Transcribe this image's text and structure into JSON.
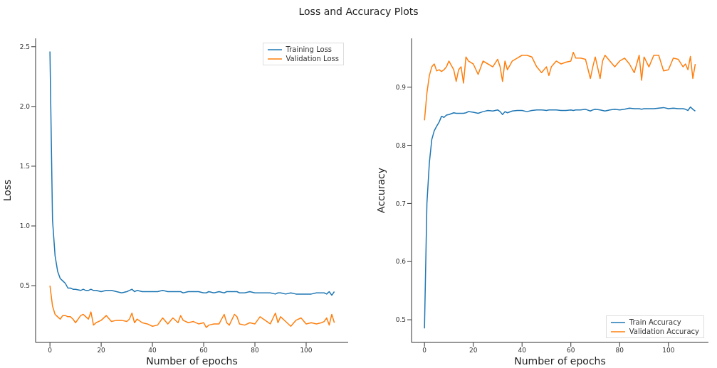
{
  "chart_data": [
    {
      "type": "line",
      "title": "Loss and Accuracy Plots",
      "xlabel": "Number of epochs",
      "ylabel": "Loss",
      "legend": "top right",
      "x": [
        0,
        1,
        2,
        3,
        4,
        5,
        6,
        7,
        8,
        9,
        10,
        12,
        13,
        14,
        15,
        16,
        17,
        18,
        20,
        22,
        24,
        26,
        28,
        30,
        31,
        32,
        33,
        34,
        36,
        38,
        40,
        42,
        44,
        46,
        48,
        50,
        51,
        52,
        54,
        56,
        58,
        60,
        61,
        62,
        64,
        66,
        68,
        69,
        70,
        72,
        73,
        74,
        76,
        78,
        80,
        82,
        84,
        86,
        88,
        89,
        90,
        92,
        94,
        96,
        98,
        100,
        102,
        104,
        106,
        107,
        108,
        109,
        110,
        111
      ],
      "xlim": [
        -5.6,
        116.4
      ],
      "xticks": [
        0,
        20,
        40,
        60,
        80,
        100
      ],
      "ylim": [
        0.025,
        2.57
      ],
      "yticks": [
        0.5,
        {
          "value": 1,
          "label": "1.0"
        },
        1.5,
        {
          "value": 2,
          "label": "2.0"
        },
        2.5
      ],
      "series": [
        {
          "name": "Training Loss",
          "color": "#1f77b4",
          "values": [
            2.46,
            1.05,
            0.75,
            0.62,
            0.56,
            0.54,
            0.52,
            0.48,
            0.48,
            0.47,
            0.47,
            0.46,
            0.47,
            0.46,
            0.46,
            0.47,
            0.46,
            0.46,
            0.45,
            0.46,
            0.46,
            0.45,
            0.44,
            0.45,
            0.46,
            0.47,
            0.45,
            0.46,
            0.45,
            0.45,
            0.45,
            0.45,
            0.46,
            0.45,
            0.45,
            0.45,
            0.45,
            0.44,
            0.45,
            0.45,
            0.45,
            0.44,
            0.44,
            0.45,
            0.44,
            0.45,
            0.44,
            0.45,
            0.45,
            0.45,
            0.45,
            0.44,
            0.44,
            0.45,
            0.44,
            0.44,
            0.44,
            0.44,
            0.43,
            0.44,
            0.44,
            0.43,
            0.44,
            0.43,
            0.43,
            0.43,
            0.43,
            0.44,
            0.44,
            0.44,
            0.43,
            0.45,
            0.42,
            0.45
          ]
        },
        {
          "name": "Validation Loss",
          "color": "#ff7f0e",
          "values": [
            0.5,
            0.33,
            0.26,
            0.24,
            0.22,
            0.25,
            0.25,
            0.24,
            0.24,
            0.22,
            0.19,
            0.25,
            0.26,
            0.24,
            0.22,
            0.28,
            0.17,
            0.19,
            0.21,
            0.25,
            0.2,
            0.21,
            0.21,
            0.2,
            0.22,
            0.27,
            0.19,
            0.22,
            0.19,
            0.18,
            0.16,
            0.17,
            0.23,
            0.18,
            0.23,
            0.19,
            0.25,
            0.21,
            0.19,
            0.2,
            0.18,
            0.19,
            0.15,
            0.17,
            0.18,
            0.18,
            0.26,
            0.19,
            0.17,
            0.26,
            0.24,
            0.18,
            0.17,
            0.19,
            0.18,
            0.24,
            0.21,
            0.18,
            0.27,
            0.19,
            0.24,
            0.2,
            0.16,
            0.21,
            0.23,
            0.18,
            0.19,
            0.18,
            0.19,
            0.2,
            0.23,
            0.17,
            0.26,
            0.19
          ]
        }
      ]
    },
    {
      "type": "line",
      "xlabel": "Number of epochs",
      "ylabel": "Accuracy",
      "legend": "bottom right",
      "x": [
        0,
        1,
        2,
        3,
        4,
        5,
        6,
        7,
        8,
        9,
        10,
        12,
        13,
        14,
        15,
        16,
        17,
        18,
        20,
        22,
        24,
        26,
        28,
        30,
        31,
        32,
        33,
        34,
        36,
        38,
        40,
        42,
        44,
        46,
        48,
        50,
        51,
        52,
        54,
        56,
        58,
        60,
        61,
        62,
        64,
        66,
        68,
        69,
        70,
        72,
        73,
        74,
        76,
        78,
        80,
        82,
        84,
        86,
        88,
        89,
        90,
        92,
        94,
        96,
        98,
        100,
        102,
        104,
        106,
        107,
        108,
        109,
        110,
        111
      ],
      "xlim": [
        -5.3,
        116.4
      ],
      "xticks": [
        0,
        20,
        40,
        60,
        80,
        100
      ],
      "ylim": [
        0.461,
        0.984
      ],
      "yticks": [
        0.5,
        0.6,
        0.7,
        0.8,
        0.9
      ],
      "series": [
        {
          "name": "Train Accuracy",
          "color": "#1f77b4",
          "values": [
            0.485,
            0.7,
            0.77,
            0.81,
            0.825,
            0.833,
            0.84,
            0.85,
            0.848,
            0.852,
            0.853,
            0.856,
            0.855,
            0.855,
            0.855,
            0.855,
            0.856,
            0.858,
            0.857,
            0.855,
            0.858,
            0.86,
            0.859,
            0.861,
            0.858,
            0.853,
            0.858,
            0.856,
            0.859,
            0.86,
            0.86,
            0.858,
            0.86,
            0.861,
            0.861,
            0.86,
            0.861,
            0.861,
            0.861,
            0.86,
            0.86,
            0.861,
            0.86,
            0.861,
            0.861,
            0.862,
            0.859,
            0.861,
            0.862,
            0.861,
            0.86,
            0.859,
            0.861,
            0.862,
            0.861,
            0.862,
            0.864,
            0.863,
            0.863,
            0.862,
            0.863,
            0.863,
            0.863,
            0.864,
            0.865,
            0.863,
            0.864,
            0.863,
            0.863,
            0.862,
            0.86,
            0.866,
            0.862,
            0.859
          ]
        },
        {
          "name": "Validation Accuracy",
          "color": "#ff7f0e",
          "values": [
            0.843,
            0.89,
            0.92,
            0.935,
            0.94,
            0.928,
            0.93,
            0.927,
            0.93,
            0.935,
            0.945,
            0.93,
            0.91,
            0.93,
            0.935,
            0.907,
            0.952,
            0.945,
            0.94,
            0.922,
            0.945,
            0.94,
            0.935,
            0.948,
            0.935,
            0.91,
            0.945,
            0.93,
            0.945,
            0.95,
            0.955,
            0.955,
            0.952,
            0.935,
            0.925,
            0.935,
            0.92,
            0.935,
            0.945,
            0.94,
            0.943,
            0.945,
            0.96,
            0.95,
            0.95,
            0.948,
            0.915,
            0.935,
            0.952,
            0.915,
            0.945,
            0.955,
            0.945,
            0.935,
            0.945,
            0.95,
            0.94,
            0.925,
            0.955,
            0.912,
            0.952,
            0.935,
            0.955,
            0.955,
            0.928,
            0.93,
            0.95,
            0.948,
            0.935,
            0.94,
            0.93,
            0.953,
            0.915,
            0.94
          ]
        }
      ]
    }
  ]
}
